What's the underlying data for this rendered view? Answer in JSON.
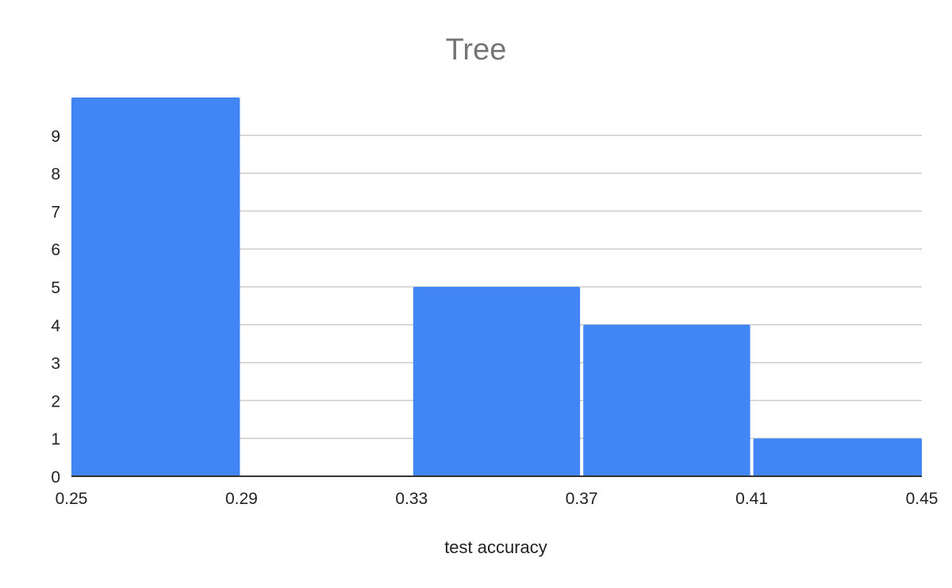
{
  "chart_data": {
    "type": "bar",
    "title": "Tree",
    "xlabel": "test accuracy",
    "ylabel": "",
    "histogram": true,
    "bins": [
      {
        "start": 0.25,
        "end": 0.29,
        "count": 10
      },
      {
        "start": 0.29,
        "end": 0.33,
        "count": 0
      },
      {
        "start": 0.33,
        "end": 0.37,
        "count": 5
      },
      {
        "start": 0.37,
        "end": 0.41,
        "count": 4
      },
      {
        "start": 0.41,
        "end": 0.45,
        "count": 1
      }
    ],
    "x_ticks": [
      "0.25",
      "0.29",
      "0.33",
      "0.37",
      "0.41",
      "0.45"
    ],
    "y_ticks": [
      "0",
      "1",
      "2",
      "3",
      "4",
      "5",
      "6",
      "7",
      "8",
      "9"
    ],
    "xlim": [
      0.25,
      0.45
    ],
    "ylim": [
      0,
      10
    ],
    "grid": true,
    "legend": "none",
    "colors": {
      "bar": "#4285f4",
      "grid": "#cccccc",
      "title": "#757575",
      "axis_text": "#222222"
    }
  }
}
